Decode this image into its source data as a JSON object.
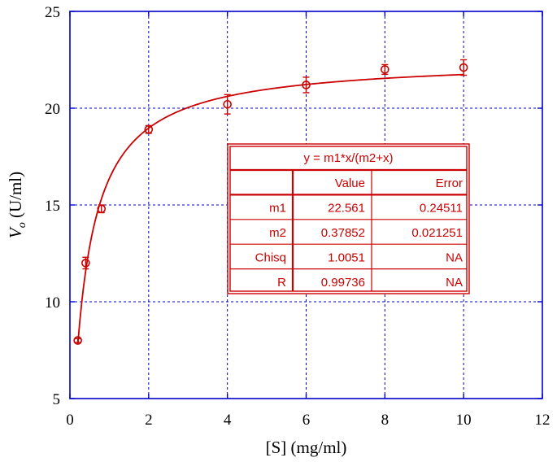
{
  "chart_data": {
    "type": "scatter",
    "xlabel": "[S] (mg/ml)",
    "ylabel_main": "V",
    "ylabel_sub": "o",
    "ylabel_rest": " (U/ml)",
    "xlim": [
      0,
      12
    ],
    "ylim": [
      5,
      25
    ],
    "xticks": [
      0,
      2,
      4,
      6,
      8,
      10,
      12
    ],
    "yticks": [
      5,
      10,
      15,
      20,
      25
    ],
    "grid": true,
    "colors": {
      "data": "#cc0000",
      "grid": "#0000cc",
      "axis": "#0000cc"
    },
    "series": [
      {
        "x": [
          0.2,
          0.4,
          0.8,
          2,
          4,
          6,
          8,
          10
        ],
        "y": [
          8.0,
          12.0,
          14.8,
          18.9,
          20.2,
          21.2,
          22.0,
          22.1
        ],
        "err": [
          0.1,
          0.3,
          0.2,
          0.2,
          0.5,
          0.4,
          0.25,
          0.4
        ]
      }
    ],
    "fit": {
      "equation": "y = m1*x/(m2+x)",
      "m1": 22.561,
      "m2": 0.37852
    },
    "fit_table": {
      "title": "y = m1*x/(m2+x)",
      "headers": [
        "",
        "Value",
        "Error"
      ],
      "rows": [
        [
          "m1",
          "22.561",
          "0.24511"
        ],
        [
          "m2",
          "0.37852",
          "0.021251"
        ],
        [
          "Chisq",
          "1.0051",
          "NA"
        ],
        [
          "R",
          "0.99736",
          "NA"
        ]
      ]
    }
  }
}
